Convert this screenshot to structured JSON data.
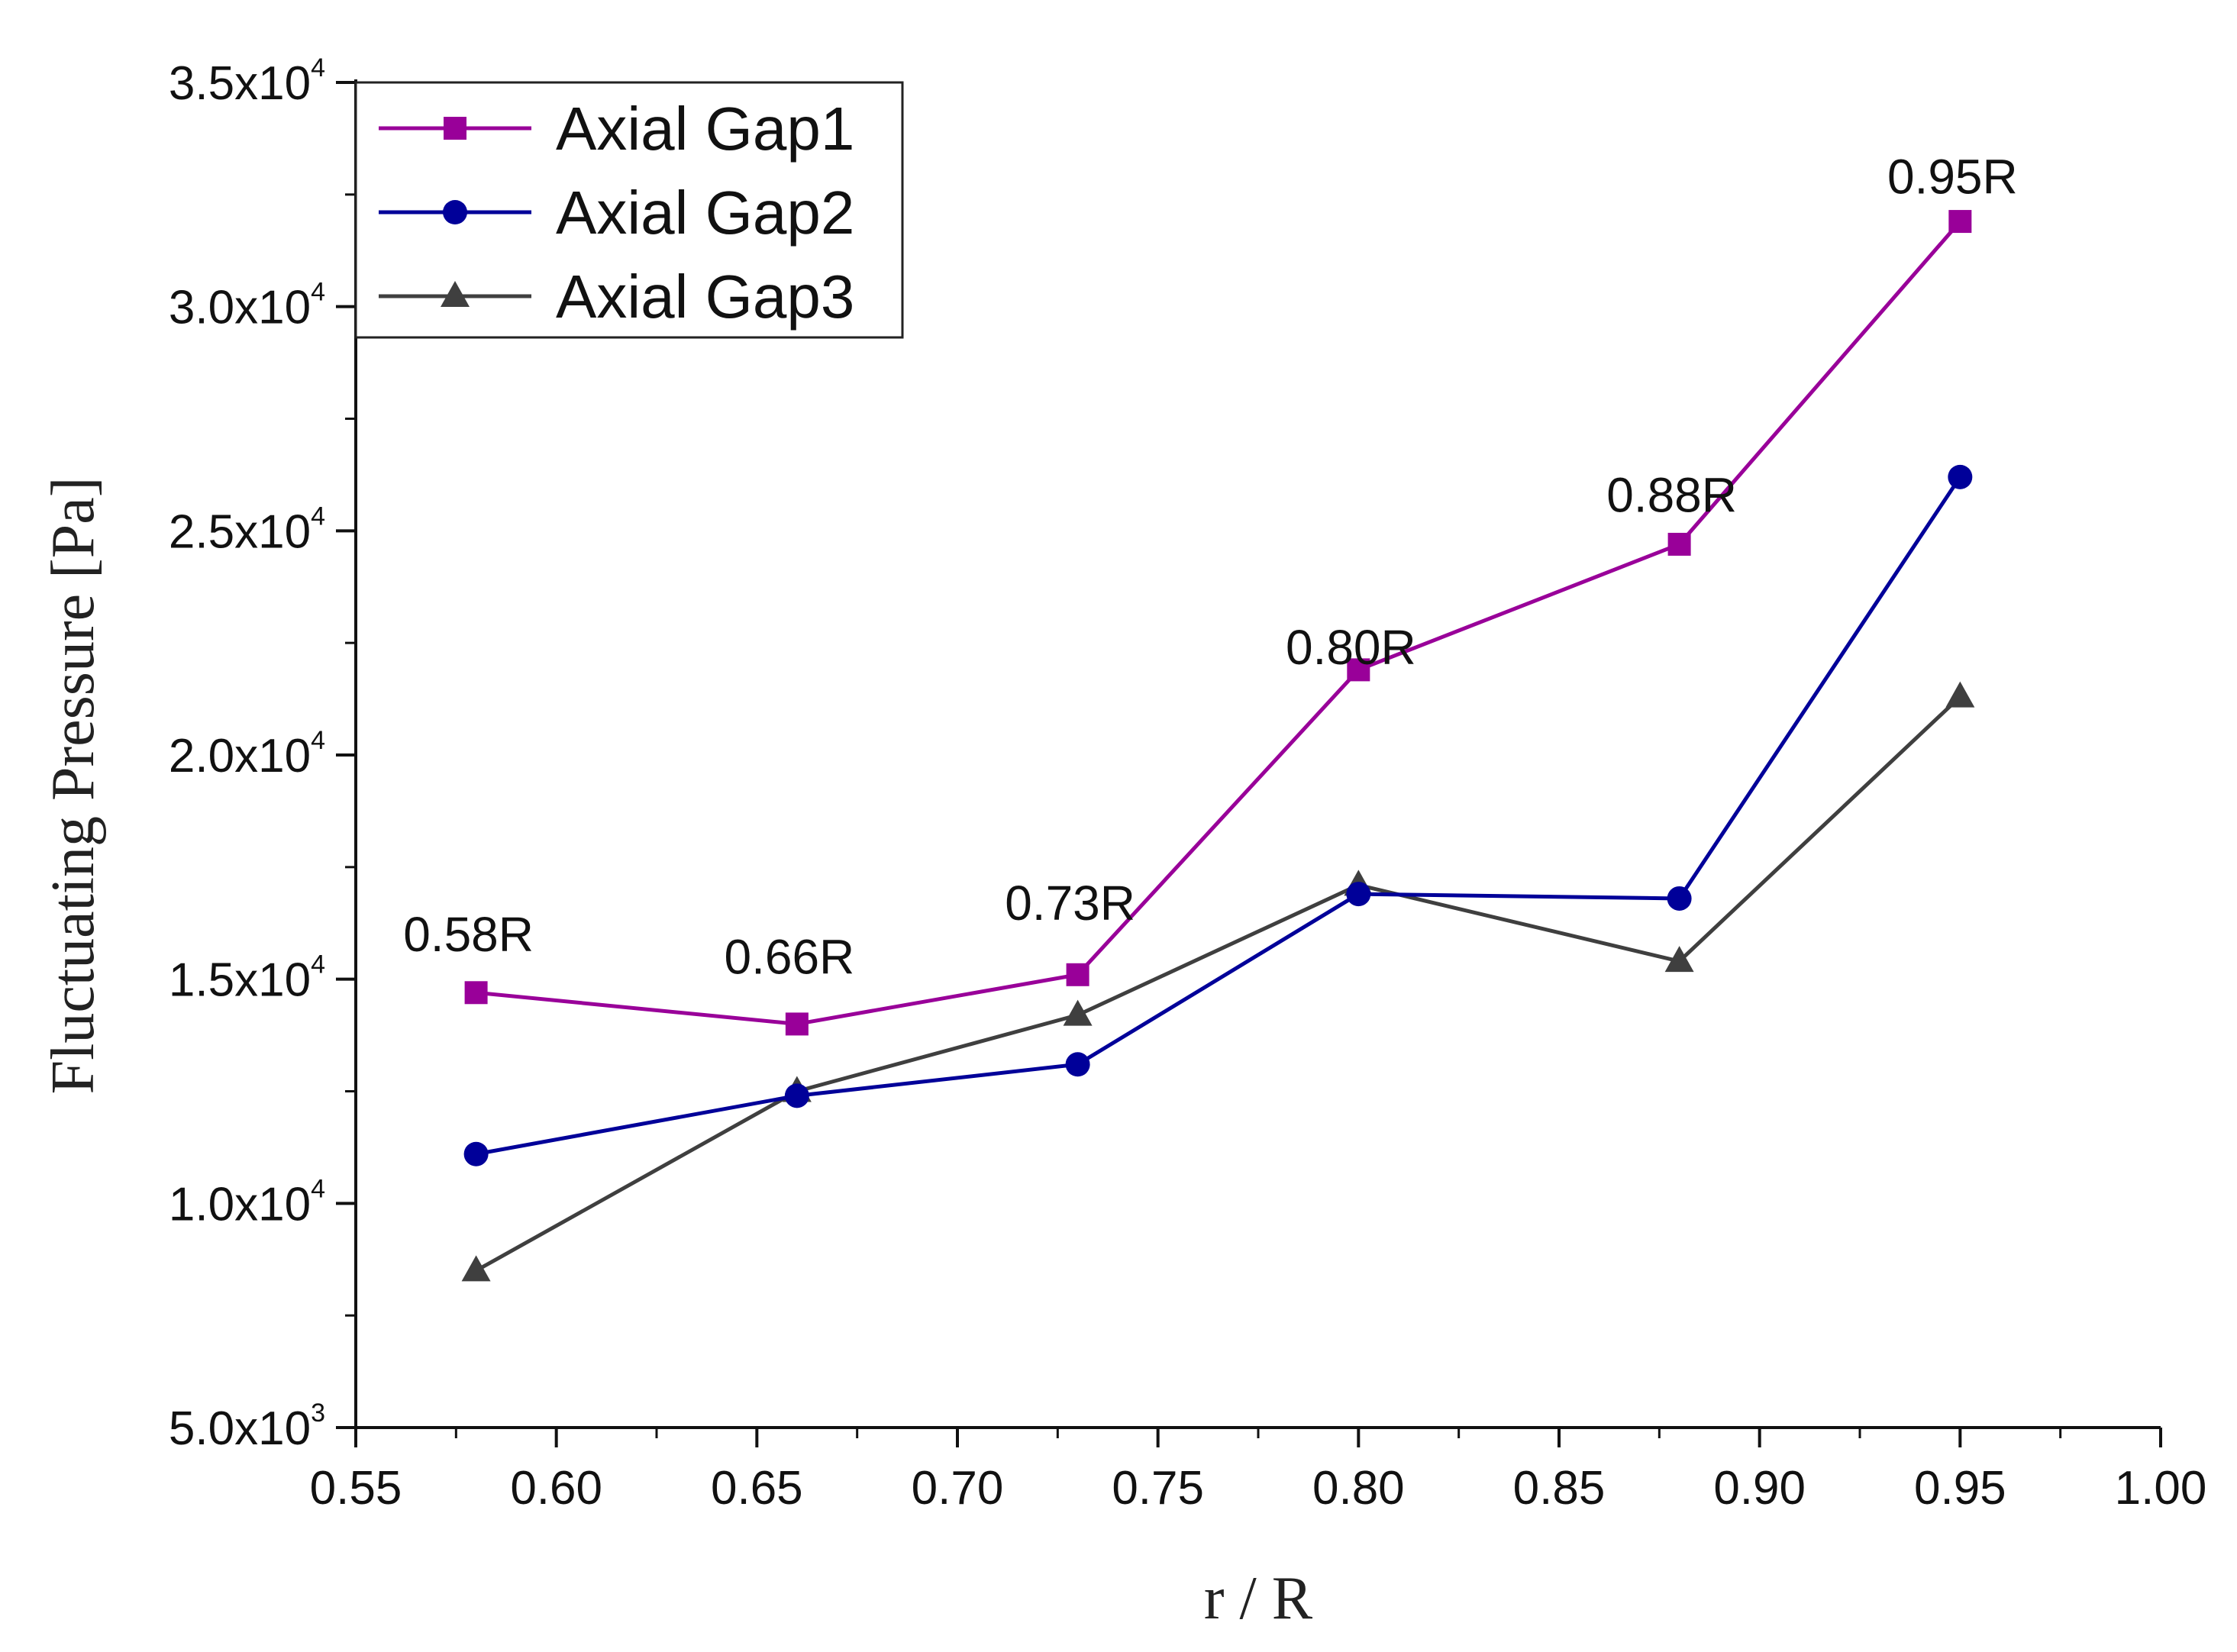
{
  "chart_data": {
    "type": "line",
    "xlabel": "r / R",
    "ylabel": "Fluctuating Pressure [Pa]",
    "xlim": [
      0.55,
      1.0
    ],
    "ylim": [
      5000,
      35000
    ],
    "x_ticks": [
      "0.55",
      "0.60",
      "0.65",
      "0.70",
      "0.75",
      "0.80",
      "0.85",
      "0.90",
      "0.95",
      "1.00"
    ],
    "y_ticks": [
      {
        "value": 5000,
        "mantissa": "5.0x10",
        "exp": "3"
      },
      {
        "value": 10000,
        "mantissa": "1.0x10",
        "exp": "4"
      },
      {
        "value": 15000,
        "mantissa": "1.5x10",
        "exp": "4"
      },
      {
        "value": 20000,
        "mantissa": "2.0x10",
        "exp": "4"
      },
      {
        "value": 25000,
        "mantissa": "2.5x10",
        "exp": "4"
      },
      {
        "value": 30000,
        "mantissa": "3.0x10",
        "exp": "4"
      },
      {
        "value": 35000,
        "mantissa": "3.5x10",
        "exp": "4"
      }
    ],
    "legend_position": "top-left",
    "grid": false,
    "series": [
      {
        "name": "Axial Gap1",
        "color": "#990099",
        "marker": "square",
        "x": [
          0.58,
          0.66,
          0.73,
          0.8,
          0.88,
          0.95
        ],
        "y": [
          14700,
          14000,
          15100,
          21900,
          24700,
          31900
        ]
      },
      {
        "name": "Axial Gap2",
        "color": "#000099",
        "marker": "circle",
        "x": [
          0.58,
          0.66,
          0.73,
          0.8,
          0.88,
          0.95
        ],
        "y": [
          11100,
          12400,
          13100,
          16900,
          16800,
          26200
        ]
      },
      {
        "name": "Axial Gap3",
        "color": "#3f3f3f",
        "marker": "triangle",
        "x": [
          0.58,
          0.66,
          0.73,
          0.8,
          0.88,
          0.95
        ],
        "y": [
          8500,
          12500,
          14200,
          17100,
          15400,
          21300
        ]
      }
    ],
    "annotations": [
      {
        "text": "0.58R",
        "x": 0.58,
        "y": 16000
      },
      {
        "text": "0.66R",
        "x": 0.66,
        "y": 15500
      },
      {
        "text": "0.73R",
        "x": 0.73,
        "y": 16700
      },
      {
        "text": "0.80R",
        "x": 0.8,
        "y": 22400
      },
      {
        "text": "0.88R",
        "x": 0.88,
        "y": 25800
      },
      {
        "text": "0.95R",
        "x": 0.95,
        "y": 32900
      }
    ]
  }
}
